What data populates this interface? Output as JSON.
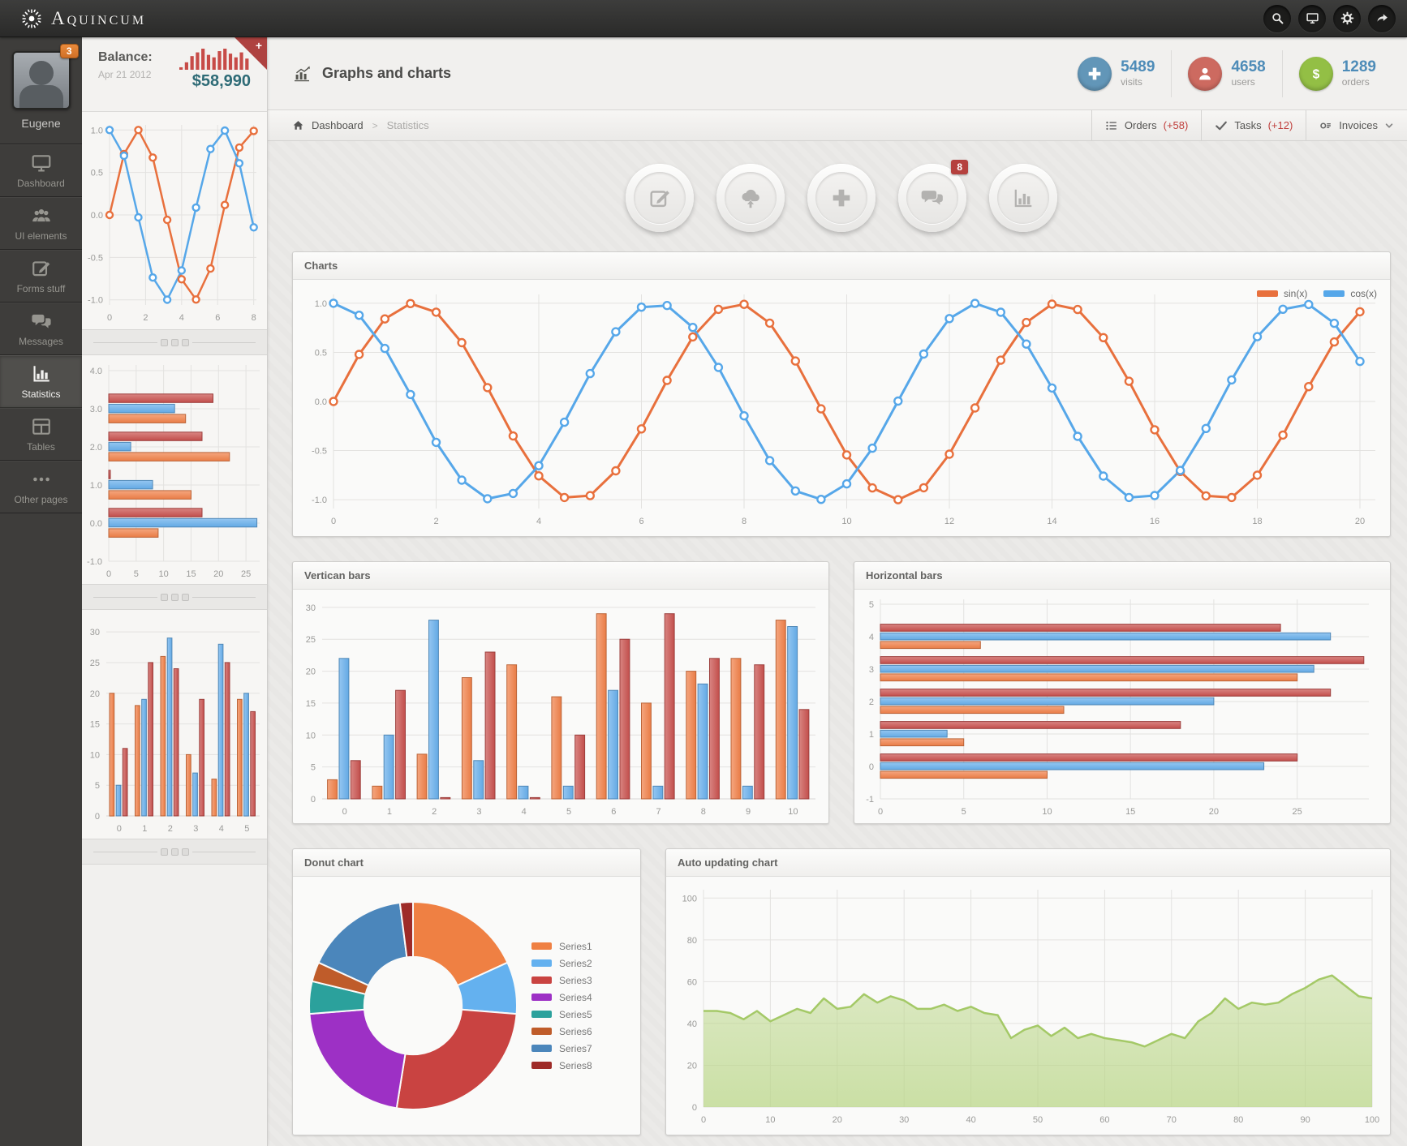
{
  "topbar": {
    "brand": "Aquincum",
    "actions": [
      {
        "name": "search"
      },
      {
        "name": "display"
      },
      {
        "name": "settings"
      },
      {
        "name": "share"
      }
    ]
  },
  "sidebar": {
    "user": {
      "name": "Eugene",
      "badge": "3"
    },
    "items": [
      {
        "label": "Dashboard",
        "icon": "monitor",
        "active": false
      },
      {
        "label": "UI elements",
        "icon": "people",
        "active": false
      },
      {
        "label": "Forms stuff",
        "icon": "edit",
        "active": false
      },
      {
        "label": "Messages",
        "icon": "chat",
        "active": false
      },
      {
        "label": "Statistics",
        "icon": "stats",
        "active": true
      },
      {
        "label": "Tables",
        "icon": "table",
        "active": false
      },
      {
        "label": "Other pages",
        "icon": "dots",
        "active": false
      }
    ]
  },
  "balance": {
    "title": "Balance:",
    "date": "Apr 21 2012",
    "amount": "$58,990",
    "ribbon": "+"
  },
  "header": {
    "title": "Graphs and charts",
    "stats": [
      {
        "value": "5489",
        "label": "visits",
        "icon": "plus",
        "color": "#6296b8"
      },
      {
        "value": "4658",
        "label": "users",
        "icon": "user",
        "color": "#cd6a60"
      },
      {
        "value": "1289",
        "label": "orders",
        "icon": "dollar",
        "color": "#93bf45"
      }
    ]
  },
  "breadcrumb": {
    "root": "Dashboard",
    "sep": ">",
    "current": "Statistics"
  },
  "toolbar": [
    {
      "label": "Orders",
      "delta": "(+58)",
      "icon": "list",
      "chevron": false
    },
    {
      "label": "Tasks",
      "delta": "(+12)",
      "icon": "check",
      "chevron": false
    },
    {
      "label": "Invoices",
      "delta": "",
      "icon": "invoice",
      "chevron": true
    }
  ],
  "quick_actions": [
    {
      "name": "compose",
      "icon": "compose",
      "badge": ""
    },
    {
      "name": "upload",
      "icon": "cloudup",
      "badge": ""
    },
    {
      "name": "add",
      "icon": "plusbig",
      "badge": ""
    },
    {
      "name": "messages",
      "icon": "chatbig",
      "badge": "8"
    },
    {
      "name": "reports",
      "icon": "barsbig",
      "badge": ""
    }
  ],
  "panels": {
    "charts": "Charts",
    "vbars": "Vertican bars",
    "hbars": "Horizontal bars",
    "donut": "Donut chart",
    "auto": "Auto updating chart"
  },
  "chart_data": [
    {
      "id": "balance-spark",
      "type": "spark",
      "color": "#c74b47",
      "values": [
        2,
        6,
        11,
        14,
        17,
        12,
        10,
        15,
        17,
        13,
        10,
        14,
        9
      ]
    },
    {
      "id": "side-line",
      "type": "line",
      "markers": true,
      "lw": 2.5,
      "mr": 4,
      "margins": {
        "l": 34,
        "r": 13,
        "t": 16,
        "b": 30
      },
      "xlim": [
        0,
        8.15
      ],
      "ylim": [
        -1.06,
        1.06
      ],
      "xticks": [
        0,
        2,
        4,
        6,
        8
      ],
      "yticks": [
        -1,
        -0.5,
        0,
        0.5,
        1
      ],
      "ytick_labels": [
        "-1.0",
        "-0.5",
        "0.0",
        "0.5",
        "1.0"
      ],
      "x": [
        0,
        0.8,
        1.6,
        2.4,
        3.2,
        4,
        4.8,
        5.6,
        6.4,
        7.2,
        8
      ],
      "series": [
        {
          "name": "sin(x)",
          "color": "#e8703d",
          "values": [
            0,
            0.717,
            1.0,
            0.675,
            -0.058,
            -0.757,
            -0.996,
            -0.631,
            0.117,
            0.794,
            0.989
          ]
        },
        {
          "name": "cos(x)",
          "color": "#56a7e9",
          "values": [
            1,
            0.697,
            -0.029,
            -0.737,
            -0.998,
            -0.654,
            0.087,
            0.776,
            0.993,
            0.608,
            -0.146
          ]
        }
      ]
    },
    {
      "id": "side-hbar",
      "type": "hbar",
      "margins": {
        "l": 33,
        "r": 9,
        "t": 12,
        "b": 28
      },
      "xlim": [
        0,
        27.5
      ],
      "ylim": [
        -1,
        4.15
      ],
      "xticks": [
        0,
        5,
        10,
        15,
        20,
        25
      ],
      "yticks": [
        -1,
        0,
        1,
        2,
        3,
        4
      ],
      "ytick_labels": [
        "-1.0",
        "0.0",
        "1.0",
        "2.0",
        "3.0",
        "4.0"
      ],
      "categories": [
        0,
        1,
        2,
        3
      ],
      "series": [
        {
          "name": "red",
          "color": "#c8504d",
          "values": [
            17,
            0.3,
            17,
            19
          ]
        },
        {
          "name": "blue",
          "color": "#66aeeb",
          "values": [
            27,
            8,
            4,
            12
          ]
        },
        {
          "name": "orange",
          "color": "#f08048",
          "values": [
            9,
            15,
            22,
            14
          ]
        }
      ]
    },
    {
      "id": "side-vbar",
      "type": "bar",
      "margins": {
        "l": 30,
        "r": 9,
        "t": 12,
        "b": 28
      },
      "ylim": [
        0,
        32
      ],
      "yticks": [
        0,
        5,
        10,
        15,
        20,
        25,
        30
      ],
      "categories": [
        "0",
        "1",
        "2",
        "3",
        "4",
        "5"
      ],
      "series": [
        {
          "name": "orange",
          "color": "#f08048",
          "values": [
            20,
            18,
            26,
            10,
            6,
            19
          ]
        },
        {
          "name": "blue",
          "color": "#66aeeb",
          "values": [
            5,
            19,
            29,
            7,
            28,
            20
          ]
        },
        {
          "name": "red",
          "color": "#c8504d",
          "values": [
            11,
            25,
            24,
            19,
            25,
            17
          ]
        }
      ]
    },
    {
      "id": "main-line",
      "type": "line",
      "markers": true,
      "lw": 3,
      "mr": 4.5,
      "legend": true,
      "margins": {
        "l": 50,
        "r": 18,
        "t": 18,
        "b": 34
      },
      "xlim": [
        0,
        20.3
      ],
      "ylim": [
        -1.09,
        1.09
      ],
      "xticks": [
        0,
        2,
        4,
        6,
        8,
        10,
        12,
        14,
        16,
        18,
        20
      ],
      "yticks": [
        -1,
        -0.5,
        0,
        0.5,
        1
      ],
      "ytick_labels": [
        "-1.0",
        "-0.5",
        "0.0",
        "0.5",
        "1.0"
      ],
      "x": [
        0,
        0.5,
        1,
        1.5,
        2,
        2.5,
        3,
        3.5,
        4,
        4.5,
        5,
        5.5,
        6,
        6.5,
        7,
        7.5,
        8,
        8.5,
        9,
        9.5,
        10,
        10.5,
        11,
        11.5,
        12,
        12.5,
        13,
        13.5,
        14,
        14.5,
        15,
        15.5,
        16,
        16.5,
        17,
        17.5,
        18,
        18.5,
        19,
        19.5,
        20
      ],
      "series": [
        {
          "name": "sin(x)",
          "color": "#e8703d",
          "values": [
            0,
            0.479,
            0.841,
            0.997,
            0.909,
            0.599,
            0.141,
            -0.351,
            -0.757,
            -0.978,
            -0.959,
            -0.706,
            -0.279,
            0.215,
            0.657,
            0.938,
            0.989,
            0.798,
            0.412,
            -0.075,
            -0.544,
            -0.88,
            -1.0,
            -0.879,
            -0.537,
            -0.066,
            0.42,
            0.804,
            0.991,
            0.936,
            0.65,
            0.206,
            -0.288,
            -0.713,
            -0.961,
            -0.978,
            -0.751,
            -0.342,
            0.151,
            0.606,
            0.913
          ]
        },
        {
          "name": "cos(x)",
          "color": "#56a7e9",
          "values": [
            1,
            0.878,
            0.54,
            0.071,
            -0.416,
            -0.801,
            -0.99,
            -0.936,
            -0.654,
            -0.211,
            0.284,
            0.709,
            0.96,
            0.977,
            0.754,
            0.347,
            -0.146,
            -0.602,
            -0.911,
            -0.997,
            -0.839,
            -0.476,
            0.004,
            0.483,
            0.844,
            0.998,
            0.908,
            0.585,
            0.137,
            -0.355,
            -0.76,
            -0.978,
            -0.958,
            -0.703,
            -0.275,
            0.22,
            0.66,
            0.939,
            0.988,
            0.796,
            0.408
          ]
        }
      ]
    },
    {
      "id": "vertican",
      "type": "bar",
      "margins": {
        "l": 36,
        "r": 16,
        "t": 14,
        "b": 30
      },
      "ylim": [
        0,
        31
      ],
      "yticks": [
        0,
        5,
        10,
        15,
        20,
        25,
        30
      ],
      "categories": [
        "0",
        "1",
        "2",
        "3",
        "4",
        "5",
        "6",
        "7",
        "8",
        "9",
        "10"
      ],
      "series": [
        {
          "name": "orange",
          "color": "#f08048",
          "values": [
            3,
            2,
            7,
            19,
            21,
            16,
            29,
            15,
            20,
            22,
            28
          ]
        },
        {
          "name": "blue",
          "color": "#66aeeb",
          "values": [
            22,
            10,
            28,
            6,
            2,
            2,
            17,
            2,
            18,
            2,
            27
          ]
        },
        {
          "name": "red",
          "color": "#c8504d",
          "values": [
            6,
            17,
            0.2,
            23,
            0.2,
            10,
            25,
            29,
            22,
            21,
            14
          ]
        }
      ]
    },
    {
      "id": "horiz",
      "type": "hbar",
      "margins": {
        "l": 32,
        "r": 26,
        "t": 12,
        "b": 30
      },
      "xlim": [
        0,
        29.3
      ],
      "ylim": [
        -1,
        5.15
      ],
      "xticks": [
        0,
        5,
        10,
        15,
        20,
        25
      ],
      "yticks": [
        -1,
        0,
        1,
        2,
        3,
        4,
        5
      ],
      "ytick_labels": [
        "-1",
        "0",
        "1",
        "2",
        "3",
        "4",
        "5"
      ],
      "categories": [
        0,
        1,
        2,
        3,
        4
      ],
      "series": [
        {
          "name": "red",
          "color": "#c8504d",
          "values": [
            25,
            18,
            27,
            29,
            24
          ]
        },
        {
          "name": "blue",
          "color": "#66aeeb",
          "values": [
            23,
            4,
            20,
            26,
            27
          ]
        },
        {
          "name": "orange",
          "color": "#f08048",
          "values": [
            10,
            5,
            11,
            25,
            6
          ]
        }
      ]
    },
    {
      "id": "donut",
      "type": "donut",
      "series": [
        {
          "name": "Series1",
          "color": "#ef8043",
          "value": 18
        },
        {
          "name": "Series2",
          "color": "#64b1ef",
          "value": 8
        },
        {
          "name": "Series3",
          "color": "#c94341",
          "value": 26
        },
        {
          "name": "Series4",
          "color": "#9d30c5",
          "value": 21
        },
        {
          "name": "Series5",
          "color": "#2ba19c",
          "value": 5
        },
        {
          "name": "Series6",
          "color": "#bf5c2a",
          "value": 3
        },
        {
          "name": "Series7",
          "color": "#4b86bb",
          "value": 16
        },
        {
          "name": "Series8",
          "color": "#9e2b28",
          "value": 2
        }
      ]
    },
    {
      "id": "auto",
      "type": "area",
      "color": "#a4c967",
      "fill": "#b8d584",
      "margins": {
        "l": 46,
        "r": 22,
        "t": 16,
        "b": 34
      },
      "xlim": [
        0,
        100
      ],
      "ylim": [
        0,
        104
      ],
      "xticks": [
        0,
        10,
        20,
        30,
        40,
        50,
        60,
        70,
        80,
        90,
        100
      ],
      "yticks": [
        0,
        20,
        40,
        60,
        80,
        100
      ],
      "values": [
        46,
        46,
        45,
        42,
        46,
        41,
        44,
        47,
        45,
        52,
        47,
        48,
        54,
        50,
        53,
        51,
        47,
        47,
        49,
        46,
        48,
        45,
        44,
        33,
        37,
        39,
        34,
        38,
        33,
        35,
        33,
        32,
        31,
        29,
        32,
        35,
        33,
        41,
        45,
        52,
        47,
        50,
        49,
        50,
        54,
        57,
        61,
        63,
        58,
        53,
        52
      ]
    }
  ]
}
